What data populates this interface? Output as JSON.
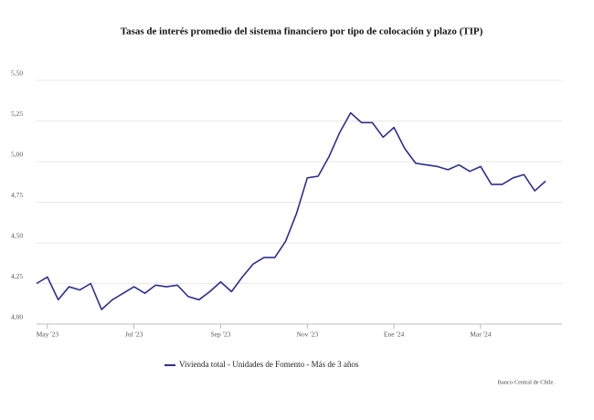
{
  "chart_data": {
    "type": "line",
    "title": "Tasas de interés promedio del sistema financiero por tipo de colocación y plazo (TIP)",
    "categories": [
      null,
      "May '23",
      null,
      null,
      null,
      null,
      null,
      null,
      null,
      "Jul '23",
      null,
      null,
      null,
      null,
      null,
      null,
      null,
      "Sep '23",
      null,
      null,
      null,
      null,
      null,
      null,
      null,
      "Nov '23",
      null,
      null,
      null,
      null,
      null,
      null,
      null,
      "Ene '24",
      null,
      null,
      null,
      null,
      null,
      null,
      null,
      "Mar '24",
      null,
      null,
      null,
      null,
      null,
      null
    ],
    "series": [
      {
        "name": "Vivienda total - Unidades de Fomento - Más de 3 años",
        "color": "#2e2e8f",
        "values": [
          4.25,
          4.29,
          4.15,
          4.23,
          4.21,
          4.25,
          4.09,
          4.15,
          4.19,
          4.23,
          4.19,
          4.24,
          4.23,
          4.24,
          4.17,
          4.15,
          4.2,
          4.26,
          4.2,
          4.29,
          4.37,
          4.41,
          4.41,
          4.51,
          4.68,
          4.9,
          4.91,
          5.03,
          5.18,
          5.3,
          5.24,
          5.24,
          5.15,
          5.21,
          5.08,
          4.99,
          4.98,
          4.97,
          4.95,
          4.98,
          4.94,
          4.97,
          4.86,
          4.86,
          4.9,
          4.92,
          4.82,
          4.88
        ]
      }
    ],
    "ylim": [
      4,
      5.5
    ],
    "yticks": [
      {
        "value": 4,
        "label": "4,00"
      },
      {
        "value": 4.25,
        "label": "4,25"
      },
      {
        "value": 4.5,
        "label": "4,50"
      },
      {
        "value": 4.75,
        "label": "4,75"
      },
      {
        "value": 5,
        "label": "5,00"
      },
      {
        "value": 5.25,
        "label": "5,25"
      },
      {
        "value": 5.5,
        "label": "5,50"
      }
    ],
    "grid": true,
    "source": "Banco Central de Chile."
  }
}
